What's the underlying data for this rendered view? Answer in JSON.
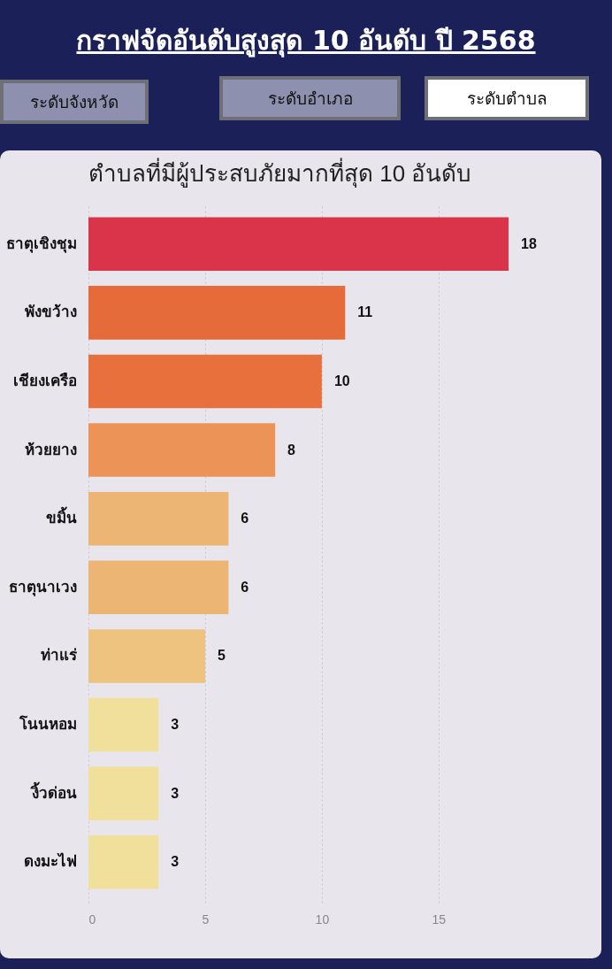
{
  "chart_data": [
    {
      "type": "other",
      "title": "กราฟจัดอันดับสูงสุด 10 อันดับ ปี 2568",
      "annotations": [
        "ระดับจังหวัด",
        "ระดับอำเภอ",
        "ระดับตำบล"
      ]
    },
    {
      "type": "bar",
      "orientation": "horizontal",
      "title": "ตำบลที่มีผู้ประสบภัยมากที่สุด 10 อันดับ",
      "categories": [
        "ธาตุเชิงชุม",
        "พังขว้าง",
        "เชียงเครือ",
        "ห้วยยาง",
        "ขมิ้น",
        "ธาตุนาเวง",
        "ท่าแร่",
        "โนนหอม",
        "งิ้วด่อน",
        "ดงมะไฟ"
      ],
      "values": [
        18,
        11,
        10,
        8,
        6,
        6,
        5,
        3,
        3,
        3
      ],
      "colors": [
        "#d9344a",
        "#e66b3a",
        "#e8703c",
        "#ec9458",
        "#edb574",
        "#edb574",
        "#eec27f",
        "#f0e09b",
        "#f0e09b",
        "#f0e09b"
      ],
      "xlim": [
        0,
        18
      ],
      "xticks": [
        0,
        5,
        10,
        15
      ],
      "grid": "x",
      "data_labels": true
    }
  ]
}
